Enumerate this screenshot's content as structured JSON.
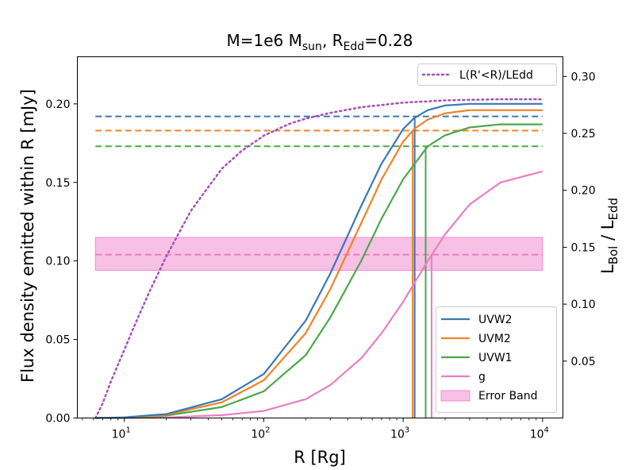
{
  "chart_data": {
    "type": "line",
    "title": {
      "main": "M=1e6 M",
      "sub1": "sun",
      "mid": ", R",
      "sub2": "Edd",
      "end": "=0.28"
    },
    "xlabel": "R [Rg]",
    "ylabel_left": "Flux density emitted within R [mJy]",
    "ylabel_right": {
      "main1": "L",
      "sub1": "Bol",
      "sep": " / L",
      "sub2": "Edd"
    },
    "x_scale": "log",
    "xlim": [
      4.6,
      14000
    ],
    "ylim_left": [
      0,
      0.23
    ],
    "ylim_right": [
      0,
      0.3173
    ],
    "x_ticks": [
      {
        "v": 10,
        "base": "10",
        "exp": "1"
      },
      {
        "v": 100,
        "base": "10",
        "exp": "2"
      },
      {
        "v": 1000,
        "base": "10",
        "exp": "3"
      },
      {
        "v": 10000,
        "base": "10",
        "exp": "4"
      }
    ],
    "y_ticks_left": [
      {
        "v": 0.0,
        "label": "0.00"
      },
      {
        "v": 0.05,
        "label": "0.05"
      },
      {
        "v": 0.1,
        "label": "0.10"
      },
      {
        "v": 0.15,
        "label": "0.15"
      },
      {
        "v": 0.2,
        "label": "0.20"
      }
    ],
    "y_ticks_right": [
      {
        "v": 0.05,
        "label": "0.05"
      },
      {
        "v": 0.1,
        "label": "0.10"
      },
      {
        "v": 0.15,
        "label": "0.15"
      },
      {
        "v": 0.2,
        "label": "0.20"
      },
      {
        "v": 0.25,
        "label": "0.25"
      },
      {
        "v": 0.3,
        "label": "0.30"
      }
    ],
    "series": [
      {
        "name": "UVW2",
        "color": "#3a78b5",
        "x": [
          6.2,
          10,
          20,
          50,
          100,
          200,
          300,
          500,
          700,
          1000,
          1200,
          1500,
          2000,
          3000,
          5000,
          10000
        ],
        "y": [
          0.0,
          0.0004,
          0.0025,
          0.012,
          0.028,
          0.062,
          0.092,
          0.135,
          0.162,
          0.184,
          0.191,
          0.196,
          0.199,
          0.2,
          0.2,
          0.2
        ],
        "threshold": 0.192,
        "r_cross": 1210
      },
      {
        "name": "UVM2",
        "color": "#f28224",
        "x": [
          6.2,
          10,
          20,
          50,
          100,
          200,
          300,
          500,
          700,
          1000,
          1200,
          1500,
          2000,
          3000,
          5000,
          10000
        ],
        "y": [
          0.0,
          0.0003,
          0.002,
          0.01,
          0.024,
          0.054,
          0.082,
          0.124,
          0.152,
          0.176,
          0.184,
          0.19,
          0.194,
          0.196,
          0.196,
          0.196
        ],
        "threshold": 0.183,
        "r_cross": 1170
      },
      {
        "name": "UVW1",
        "color": "#4aa84a",
        "x": [
          6.2,
          10,
          20,
          50,
          100,
          200,
          300,
          500,
          700,
          1000,
          1500,
          2000,
          3000,
          5000,
          10000
        ],
        "y": [
          0.0,
          0.0002,
          0.0015,
          0.007,
          0.017,
          0.04,
          0.064,
          0.1,
          0.127,
          0.152,
          0.173,
          0.18,
          0.185,
          0.187,
          0.187
        ],
        "threshold": 0.173,
        "r_cross": 1450
      },
      {
        "name": "g",
        "color": "#e87fc3",
        "x": [
          6.2,
          10,
          20,
          50,
          100,
          200,
          300,
          500,
          700,
          1000,
          1500,
          2000,
          3000,
          5000,
          10000
        ],
        "y": [
          0.0,
          0.0,
          0.0003,
          0.0018,
          0.0045,
          0.012,
          0.021,
          0.038,
          0.054,
          0.074,
          0.1,
          0.117,
          0.136,
          0.15,
          0.157
        ],
        "threshold": 0.104,
        "r_cross": 1600
      }
    ],
    "lbol": {
      "name": "L(R'<R)/LEdd",
      "color": "#a64fba",
      "x": [
        6.2,
        7,
        8,
        10,
        12,
        15,
        20,
        30,
        50,
        70,
        100,
        150,
        200,
        300,
        500,
        1000,
        2000,
        5000,
        10000
      ],
      "y": [
        0.0,
        0.013,
        0.032,
        0.06,
        0.083,
        0.11,
        0.142,
        0.182,
        0.219,
        0.235,
        0.248,
        0.258,
        0.263,
        0.268,
        0.273,
        0.277,
        0.279,
        0.28,
        0.28
      ]
    },
    "error_band": {
      "label": "Error Band",
      "color": "#f08cd0",
      "ymin": 0.094,
      "ymax": 0.115,
      "xmin": 6.2,
      "xmax": 10000
    },
    "legend": {
      "position": "lower-right",
      "entries": [
        "UVW2",
        "UVM2",
        "UVW1",
        "g",
        "Error Band"
      ]
    },
    "legend_right": {
      "position": "top-right",
      "entries": [
        "L(R'<R)/LEdd"
      ]
    }
  }
}
